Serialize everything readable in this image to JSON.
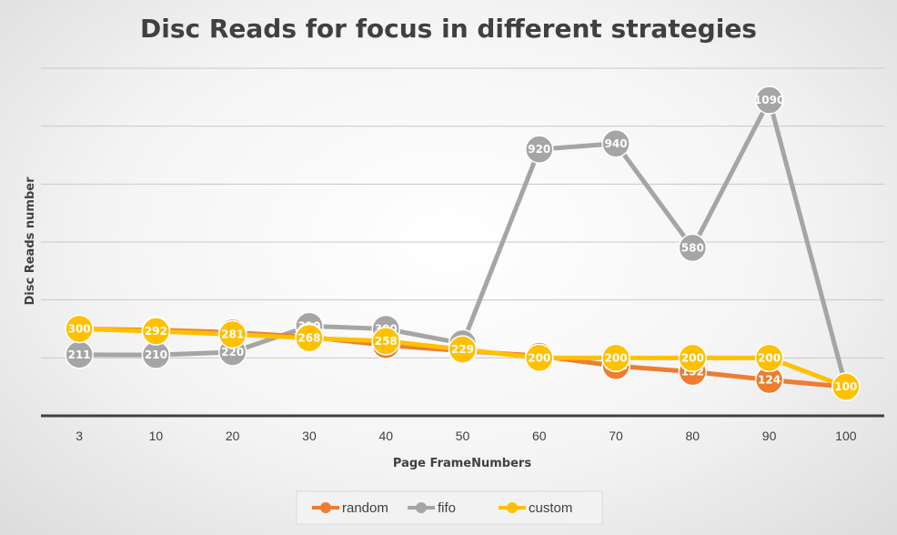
{
  "chart_data": {
    "type": "line",
    "title": "Disc Reads for focus in different strategies",
    "xlabel": "Page FrameNumbers",
    "ylabel": "Disc Reads number",
    "categories": [
      "3",
      "10",
      "20",
      "30",
      "40",
      "50",
      "60",
      "70",
      "80",
      "90",
      "100"
    ],
    "ylim": [
      0,
      1200
    ],
    "ytick_step": 200,
    "ytick_labels_shown": false,
    "grid": true,
    "legend": "bottom",
    "series": [
      {
        "name": "random",
        "color": "#ED7D31",
        "values": [
          300,
          296,
          288,
          272,
          244,
          224,
          207,
          172,
          152,
          124,
          100
        ]
      },
      {
        "name": "fifo",
        "color": "#A5A5A5",
        "values": [
          211,
          210,
          220,
          310,
          300,
          250,
          920,
          940,
          580,
          1090,
          100
        ]
      },
      {
        "name": "custom",
        "color": "#FFC000",
        "values": [
          300,
          292,
          281,
          268,
          258,
          229,
          200,
          200,
          200,
          200,
          100
        ]
      }
    ]
  }
}
